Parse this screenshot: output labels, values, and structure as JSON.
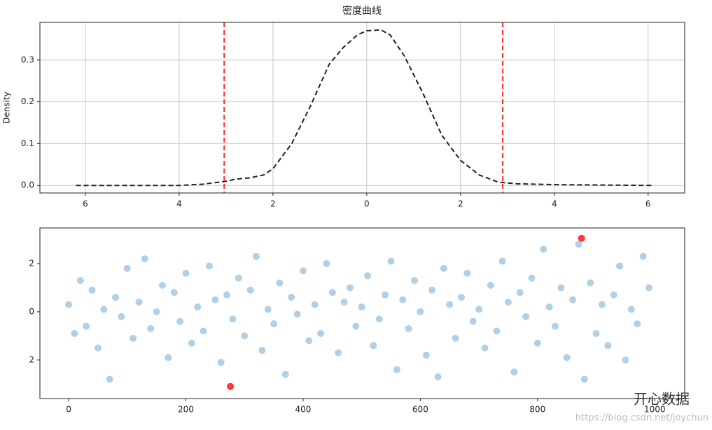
{
  "chart_data": [
    {
      "type": "line",
      "title": "密度曲线",
      "ylabel": "Density",
      "color": "#222222",
      "dash": true,
      "x": [
        -6.2,
        -4,
        -3.5,
        -3,
        -2.8,
        -2.5,
        -2.2,
        -2,
        -1.6,
        -1.2,
        -0.8,
        -0.5,
        -0.2,
        0,
        0.3,
        0.5,
        0.8,
        1.2,
        1.6,
        2,
        2.4,
        2.8,
        3.2,
        4,
        5,
        6.1
      ],
      "values": [
        0,
        0,
        0.003,
        0.01,
        0.015,
        0.018,
        0.025,
        0.04,
        0.1,
        0.19,
        0.29,
        0.33,
        0.36,
        0.37,
        0.372,
        0.36,
        0.31,
        0.22,
        0.12,
        0.06,
        0.025,
        0.008,
        0.004,
        0.002,
        0.001,
        0
      ],
      "vlines": [
        -3.04,
        2.9
      ],
      "vline_color": "#ff2a2a",
      "xlim": [
        -6.97,
        6.78
      ],
      "ylim": [
        -0.018,
        0.39
      ],
      "xticks": [
        {
          "value": -6,
          "label": "6"
        },
        {
          "value": -4,
          "label": "4"
        },
        {
          "value": -2,
          "label": "2"
        },
        0,
        2,
        4,
        6
      ],
      "yticks": [
        {
          "value": 0,
          "label": "0.0"
        },
        0.1,
        0.2,
        0.3
      ],
      "grid": true
    },
    {
      "type": "scatter",
      "series": [
        {
          "color": "#1f77b4",
          "opacity": 0.35,
          "x": [
            0,
            10,
            20,
            30,
            40,
            50,
            60,
            70,
            80,
            90,
            100,
            110,
            120,
            130,
            140,
            150,
            160,
            170,
            180,
            190,
            200,
            210,
            220,
            230,
            240,
            250,
            260,
            270,
            280,
            290,
            300,
            310,
            320,
            330,
            340,
            350,
            360,
            370,
            380,
            390,
            400,
            410,
            420,
            430,
            440,
            450,
            460,
            470,
            480,
            490,
            500,
            510,
            520,
            530,
            540,
            550,
            560,
            570,
            580,
            590,
            600,
            610,
            620,
            630,
            640,
            650,
            660,
            670,
            680,
            690,
            700,
            710,
            720,
            730,
            740,
            750,
            760,
            770,
            780,
            790,
            800,
            810,
            820,
            830,
            840,
            850,
            860,
            870,
            880,
            890,
            900,
            910,
            920,
            930,
            940,
            950,
            960,
            970,
            980,
            990
          ],
          "values": [
            0.3,
            -0.9,
            1.3,
            -0.6,
            0.9,
            -1.5,
            0.1,
            -2.8,
            0.6,
            -0.2,
            1.8,
            -1.1,
            0.4,
            2.2,
            -0.7,
            0.0,
            1.1,
            -1.9,
            0.8,
            -0.4,
            1.6,
            -1.3,
            0.2,
            -0.8,
            1.9,
            0.5,
            -2.1,
            0.7,
            -0.3,
            1.4,
            -1.0,
            0.9,
            2.3,
            -1.6,
            0.1,
            -0.5,
            1.2,
            -2.6,
            0.6,
            -0.1,
            1.7,
            -1.2,
            0.3,
            -0.9,
            2.0,
            0.8,
            -1.7,
            0.4,
            1.0,
            -0.6,
            0.2,
            1.5,
            -1.4,
            -0.3,
            0.7,
            2.1,
            -2.4,
            0.5,
            -0.7,
            1.3,
            0.0,
            -1.8,
            0.9,
            -2.7,
            1.8,
            0.3,
            -1.1,
            0.6,
            1.6,
            -0.4,
            0.1,
            -1.5,
            1.1,
            -0.8,
            2.1,
            0.4,
            -2.5,
            0.8,
            -0.2,
            1.4,
            -1.3,
            2.6,
            0.2,
            -0.6,
            1.0,
            -1.9,
            0.5,
            2.8,
            -2.8,
            1.2,
            -0.9,
            0.3,
            -1.4,
            0.7,
            1.9,
            -2.0,
            0.1,
            -0.5,
            2.3,
            1.0
          ]
        },
        {
          "color": "#ff2020",
          "opacity": 0.9,
          "x": [
            276,
            875
          ],
          "values": [
            -3.1,
            3.05
          ]
        }
      ],
      "xlim": [
        -49,
        1051
      ],
      "ylim": [
        -3.6,
        3.48
      ],
      "xticks": [
        0,
        200,
        400,
        600,
        800,
        1000
      ],
      "yticks": [
        {
          "value": -2,
          "label": "2"
        },
        0,
        2
      ],
      "grid": false
    }
  ],
  "watermark": {
    "text": "开心数据",
    "url": "https://blog.csdn.net/joychun"
  }
}
